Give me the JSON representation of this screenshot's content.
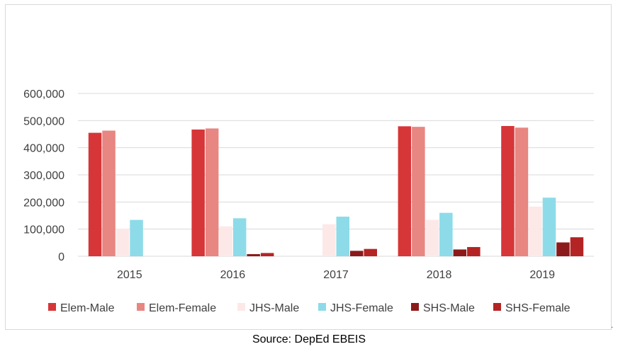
{
  "chart_data": {
    "type": "bar",
    "title": "",
    "xlabel": "",
    "ylabel": "",
    "categories": [
      "2015",
      "2016",
      "2017",
      "2018",
      "2019"
    ],
    "ylim": [
      0,
      600000
    ],
    "yticks": [
      0,
      100000,
      200000,
      300000,
      400000,
      500000,
      600000
    ],
    "ytick_labels": [
      "0",
      "100,000",
      "200,000",
      "300,000",
      "400,000",
      "500,000",
      "600,000"
    ],
    "grid": true,
    "legend_position": "bottom",
    "series": [
      {
        "name": "Elem-Male",
        "color": "#d63638",
        "values": [
          455000,
          467000,
          null,
          479000,
          480000
        ]
      },
      {
        "name": "Elem-Female",
        "color": "#e88682",
        "values": [
          463000,
          471000,
          null,
          477000,
          474000
        ]
      },
      {
        "name": "JHS-Male",
        "color": "#fde8e8",
        "values": [
          102000,
          110000,
          118000,
          134000,
          183000
        ]
      },
      {
        "name": "JHS-Female",
        "color": "#8ddbe9",
        "values": [
          134000,
          140000,
          146000,
          160000,
          216000
        ]
      },
      {
        "name": "SHS-Male",
        "color": "#8c1a1a",
        "values": [
          null,
          8000,
          20000,
          25000,
          51000
        ]
      },
      {
        "name": "SHS-Female",
        "color": "#b52424",
        "values": [
          null,
          12000,
          27000,
          34000,
          70000
        ]
      }
    ]
  },
  "source_text": "Source: DepEd EBEIS",
  "corner_mark": "."
}
